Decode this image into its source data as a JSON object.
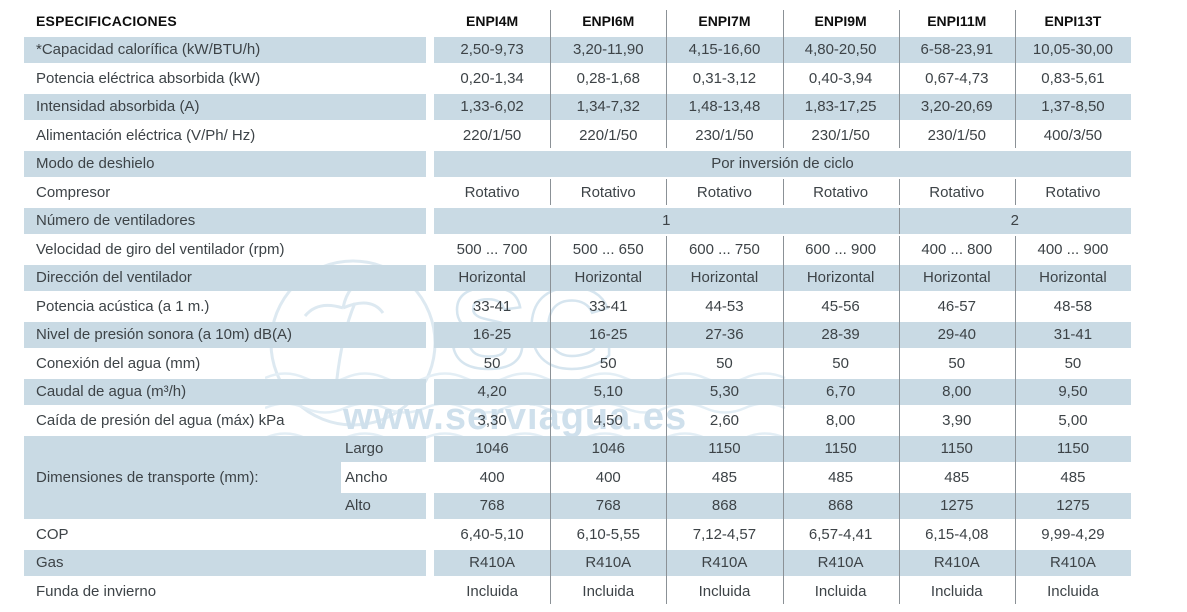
{
  "watermark": {
    "text": "www.serviagua.es",
    "logo_text": "SG"
  },
  "colors": {
    "row_shade": "#c9dae4",
    "divider": "#8b9196",
    "body_text": "#3d4347",
    "header_text": "#0e0e0e",
    "watermark": "#cfe0ec"
  },
  "header": {
    "label": "ESPECIFICACIONES",
    "models": [
      "ENPI4M",
      "ENPI6M",
      "ENPI7M",
      "ENPI9M",
      "ENPI11M",
      "ENPI13T"
    ]
  },
  "rows": [
    {
      "type": "values",
      "shaded": true,
      "label": "*Capacidad calorífica (kW/BTU/h)",
      "values": [
        "2,50-9,73",
        "3,20-11,90",
        "4,15-16,60",
        "4,80-20,50",
        "6-58-23,91",
        "10,05-30,00"
      ]
    },
    {
      "type": "values",
      "shaded": false,
      "label": "Potencia eléctrica absorbida (kW)",
      "values": [
        "0,20-1,34",
        "0,28-1,68",
        "0,31-3,12",
        "0,40-3,94",
        "0,67-4,73",
        "0,83-5,61"
      ]
    },
    {
      "type": "values",
      "shaded": true,
      "label": "Intensidad absorbida (A)",
      "values": [
        "1,33-6,02",
        "1,34-7,32",
        "1,48-13,48",
        "1,83-17,25",
        "3,20-20,69",
        "1,37-8,50"
      ]
    },
    {
      "type": "values",
      "shaded": false,
      "label": "Alimentación eléctrica (V/Ph/ Hz)",
      "values": [
        "220/1/50",
        "220/1/50",
        "230/1/50",
        "230/1/50",
        "230/1/50",
        "400/3/50"
      ]
    },
    {
      "type": "span",
      "shaded": true,
      "label": "Modo de deshielo",
      "spans": [
        {
          "text": "Por inversión de ciclo",
          "cols": 6
        }
      ]
    },
    {
      "type": "values",
      "shaded": false,
      "label": "Compresor",
      "values": [
        "Rotativo",
        "Rotativo",
        "Rotativo",
        "Rotativo",
        "Rotativo",
        "Rotativo"
      ]
    },
    {
      "type": "span",
      "shaded": true,
      "label": "Número de ventiladores",
      "spans": [
        {
          "text": "1",
          "cols": 4
        },
        {
          "text": "2",
          "cols": 2
        }
      ]
    },
    {
      "type": "values",
      "shaded": false,
      "label": "Velocidad de giro del ventilador (rpm)",
      "values": [
        "500 ... 700",
        "500 ... 650",
        "600 ... 750",
        "600 ... 900",
        "400 ... 800",
        "400 ... 900"
      ]
    },
    {
      "type": "values",
      "shaded": true,
      "label": "Dirección del ventilador",
      "values": [
        "Horizontal",
        "Horizontal",
        "Horizontal",
        "Horizontal",
        "Horizontal",
        "Horizontal"
      ]
    },
    {
      "type": "values",
      "shaded": false,
      "label": "Potencia acústica (a 1 m.)",
      "values": [
        "33-41",
        "33-41",
        "44-53",
        "45-56",
        "46-57",
        "48-58"
      ]
    },
    {
      "type": "values",
      "shaded": true,
      "label": "Nivel de presión sonora (a 10m) dB(A)",
      "values": [
        "16-25",
        "16-25",
        "27-36",
        "28-39",
        "29-40",
        "31-41"
      ]
    },
    {
      "type": "values",
      "shaded": false,
      "label": "Conexión del agua (mm)",
      "values": [
        "50",
        "50",
        "50",
        "50",
        "50",
        "50"
      ]
    },
    {
      "type": "values",
      "shaded": true,
      "label": "Caudal de agua (m³/h)",
      "values": [
        "4,20",
        "5,10",
        "5,30",
        "6,70",
        "8,00",
        "9,50"
      ]
    },
    {
      "type": "values",
      "shaded": false,
      "label": "Caída de presión del agua (máx) kPa",
      "values": [
        "3,30",
        "4,50",
        "2,60",
        "8,00",
        "3,90",
        "5,00"
      ]
    },
    {
      "type": "dimensions",
      "label": "Dimensiones de transporte (mm):",
      "subrows": [
        {
          "sub": "Largo",
          "shaded": true,
          "values": [
            "1046",
            "1046",
            "1150",
            "1150",
            "1150",
            "1150"
          ]
        },
        {
          "sub": "Ancho",
          "shaded": false,
          "values": [
            "400",
            "400",
            "485",
            "485",
            "485",
            "485"
          ]
        },
        {
          "sub": "Alto",
          "shaded": true,
          "values": [
            "768",
            "768",
            "868",
            "868",
            "1275",
            "1275"
          ]
        }
      ]
    },
    {
      "type": "values",
      "shaded": false,
      "label": "COP",
      "values": [
        "6,40-5,10",
        "6,10-5,55",
        "7,12-4,57",
        "6,57-4,41",
        "6,15-4,08",
        "9,99-4,29"
      ]
    },
    {
      "type": "values",
      "shaded": true,
      "label": "Gas",
      "values": [
        "R410A",
        "R410A",
        "R410A",
        "R410A",
        "R410A",
        "R410A"
      ]
    },
    {
      "type": "values",
      "shaded": false,
      "label": "Funda de invierno",
      "values": [
        "Incluida",
        "Incluida",
        "Incluida",
        "Incluida",
        "Incluida",
        "Incluida"
      ]
    }
  ]
}
